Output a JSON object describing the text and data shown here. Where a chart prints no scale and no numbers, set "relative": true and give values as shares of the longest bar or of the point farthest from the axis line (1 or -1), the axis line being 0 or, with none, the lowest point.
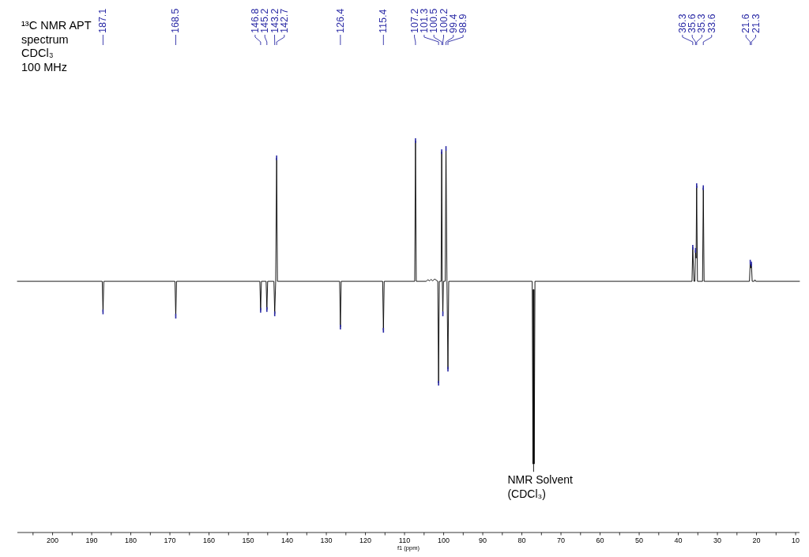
{
  "chart_data": {
    "type": "line",
    "title": "¹³C NMR APT\nspectrum\nCDCl₃\n100 MHz",
    "xlabel": "f1 (ppm)",
    "relative": true,
    "color": "#000000",
    "xlim": [
      209,
      9
    ],
    "xticks": [
      {
        "value": 205,
        "label": null
      },
      200,
      {
        "value": 195,
        "label": null
      },
      190,
      {
        "value": 185,
        "label": null
      },
      180,
      {
        "value": 175,
        "label": null
      },
      170,
      {
        "value": 165,
        "label": null
      },
      160,
      {
        "value": 155,
        "label": null
      },
      150,
      {
        "value": 145,
        "label": null
      },
      140,
      {
        "value": 135,
        "label": null
      },
      130,
      {
        "value": 125,
        "label": null
      },
      120,
      {
        "value": 115,
        "label": null
      },
      110,
      {
        "value": 105,
        "label": null
      },
      100,
      {
        "value": 95,
        "label": null
      },
      90,
      {
        "value": 85,
        "label": null
      },
      80,
      {
        "value": 75,
        "label": null
      },
      70,
      {
        "value": 65,
        "label": null
      },
      60,
      {
        "value": 55,
        "label": null
      },
      50,
      {
        "value": 45,
        "label": null
      },
      40,
      {
        "value": 35,
        "label": null
      },
      30,
      {
        "value": 25,
        "label": null
      },
      20,
      {
        "value": 15,
        "label": null
      },
      10
    ],
    "x": [
      209,
      187.3,
      187.1,
      186.9,
      168.7,
      168.5,
      168.3,
      147.0,
      146.8,
      146.6,
      145.4,
      145.2,
      145.0,
      143.4,
      143.2,
      142.95,
      142.7,
      142.5,
      126.6,
      126.4,
      126.2,
      115.6,
      115.4,
      115.2,
      107.4,
      107.2,
      107.0,
      104.5,
      104.0,
      103.6,
      103.2,
      102.8,
      102.3,
      101.5,
      101.3,
      101.1,
      100.65,
      100.5,
      100.35,
      100.2,
      100.05,
      99.6,
      99.4,
      99.15,
      98.9,
      98.7,
      77.35,
      77.16,
      77.08,
      77.0,
      76.92,
      76.84,
      76.65,
      36.5,
      36.3,
      36.0,
      35.75,
      35.6,
      35.45,
      35.3,
      35.1,
      33.8,
      33.6,
      33.4,
      21.8,
      21.6,
      21.45,
      21.3,
      21.1,
      20.6,
      20.4,
      20.2,
      9
    ],
    "values": [
      0.641,
      0.641,
      0.563,
      0.641,
      0.641,
      0.552,
      0.641,
      0.641,
      0.567,
      0.641,
      0.641,
      0.569,
      0.641,
      0.641,
      0.558,
      0.641,
      0.956,
      0.641,
      0.641,
      0.524,
      0.641,
      0.641,
      0.516,
      0.641,
      0.641,
      1.0,
      0.641,
      0.641,
      0.645,
      0.642,
      0.646,
      0.642,
      0.647,
      0.641,
      0.381,
      0.641,
      0.641,
      0.972,
      0.641,
      0.558,
      0.641,
      0.641,
      0.98,
      0.641,
      0.417,
      0.641,
      0.641,
      0.175,
      0.62,
      0.175,
      0.62,
      0.175,
      0.641,
      0.641,
      0.728,
      0.641,
      0.641,
      0.72,
      0.7,
      0.885,
      0.641,
      0.641,
      0.88,
      0.641,
      0.641,
      0.69,
      0.675,
      0.685,
      0.641,
      0.641,
      0.645,
      0.641,
      0.641
    ],
    "annotations": [
      {
        "text": "187.1",
        "x": 187.1
      },
      {
        "text": "168.5",
        "x": 168.5
      },
      {
        "text": "146.8",
        "x": 146.8
      },
      {
        "text": "145.2",
        "x": 145.2
      },
      {
        "text": "143.2",
        "x": 143.2
      },
      {
        "text": "142.7",
        "x": 142.7
      },
      {
        "text": "126.4",
        "x": 126.4
      },
      {
        "text": "115.4",
        "x": 115.4
      },
      {
        "text": "107.2",
        "x": 107.2
      },
      {
        "text": "101.3",
        "x": 101.3
      },
      {
        "text": "100.5",
        "x": 100.5
      },
      {
        "text": "100.2",
        "x": 100.2
      },
      {
        "text": "99.4",
        "x": 99.4
      },
      {
        "text": "98.9",
        "x": 98.9
      },
      {
        "text": "36.3",
        "x": 36.3
      },
      {
        "text": "35.6",
        "x": 35.6
      },
      {
        "text": "35.3",
        "x": 35.3
      },
      {
        "text": "33.6",
        "x": 33.6
      },
      {
        "text": "21.6",
        "x": 21.6
      },
      {
        "text": "21.3",
        "x": 21.3
      },
      {
        "text": "NMR Solvent\n(CDCl₃)",
        "x": 77.0,
        "y": 0.175
      }
    ]
  }
}
